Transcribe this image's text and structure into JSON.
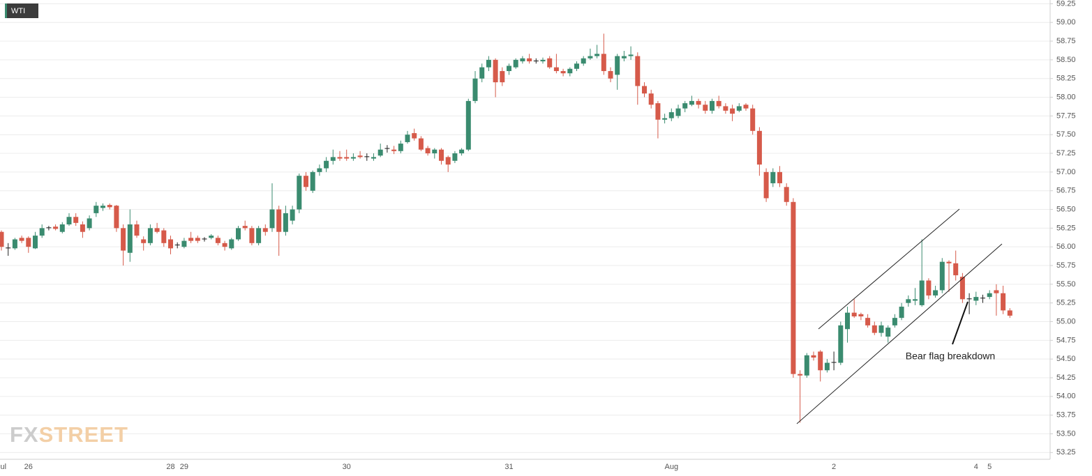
{
  "chart_data": {
    "type": "candlestick",
    "title": "WTI",
    "watermark": [
      "FX",
      "STREET"
    ],
    "annotations": [
      {
        "text": "Bear flag breakdown"
      }
    ],
    "up_color": "#3a8b6f",
    "down_color": "#d65a4a",
    "doji_color": "#222222",
    "grid": true,
    "ylim": [
      53.16,
      59.3
    ],
    "yticks": [
      53.25,
      {
        "value": 53.5,
        "label": "53.50"
      },
      53.75,
      {
        "value": 54,
        "label": "54.00"
      },
      54.25,
      {
        "value": 54.5,
        "label": "54.50"
      },
      54.75,
      {
        "value": 55,
        "label": "55.00"
      },
      55.25,
      {
        "value": 55.5,
        "label": "55.50"
      },
      55.75,
      {
        "value": 56,
        "label": "56.00"
      },
      56.25,
      {
        "value": 56.5,
        "label": "56.50"
      },
      56.75,
      {
        "value": 57,
        "label": "57.00"
      },
      57.25,
      {
        "value": 57.5,
        "label": "57.50"
      },
      57.75,
      {
        "value": 58,
        "label": "58.00"
      },
      58.25,
      {
        "value": 58.5,
        "label": "58.50"
      },
      58.75,
      {
        "value": 59,
        "label": "59.00"
      },
      59.25
    ],
    "categories": [
      "Jul",
      null,
      null,
      null,
      "26",
      null,
      null,
      null,
      null,
      null,
      null,
      null,
      null,
      null,
      null,
      null,
      null,
      null,
      null,
      null,
      null,
      null,
      null,
      null,
      null,
      "28",
      null,
      "29",
      null,
      null,
      null,
      null,
      null,
      null,
      null,
      null,
      null,
      null,
      null,
      null,
      null,
      null,
      null,
      null,
      null,
      null,
      null,
      null,
      null,
      null,
      null,
      "30",
      null,
      null,
      null,
      null,
      null,
      null,
      null,
      null,
      null,
      null,
      null,
      null,
      null,
      null,
      null,
      null,
      null,
      null,
      null,
      null,
      null,
      null,
      null,
      "31",
      null,
      null,
      null,
      null,
      null,
      null,
      null,
      null,
      null,
      null,
      null,
      null,
      null,
      null,
      null,
      null,
      null,
      null,
      null,
      null,
      null,
      null,
      null,
      "Aug",
      null,
      null,
      null,
      null,
      null,
      null,
      null,
      null,
      null,
      null,
      null,
      null,
      null,
      null,
      null,
      null,
      null,
      null,
      null,
      null,
      null,
      null,
      null,
      "2",
      null,
      null,
      null,
      null,
      null,
      null,
      null,
      null,
      null,
      null,
      null,
      null,
      null,
      null,
      null,
      null,
      null,
      null,
      null,
      null,
      "4",
      null,
      "5",
      null,
      null,
      null
    ],
    "open": [
      56.2,
      55.98,
      55.98,
      56.12,
      56.12,
      55.98,
      56.15,
      56.25,
      56.27,
      56.2,
      56.3,
      56.4,
      56.3,
      56.25,
      56.45,
      56.52,
      56.56,
      56.55,
      56.25,
      55.92,
      56.3,
      56.1,
      56.05,
      56.25,
      56.22,
      56.1,
      56.02,
      56.0,
      56.12,
      56.12,
      56.1,
      56.12,
      56.12,
      56.05,
      55.98,
      56.1,
      56.28,
      56.25,
      56.05,
      56.25,
      56.25,
      56.5,
      56.2,
      56.35,
      56.5,
      56.95,
      56.75,
      57.0,
      57.05,
      57.15,
      57.2,
      57.2,
      57.18,
      57.22,
      57.2,
      57.18,
      57.22,
      57.32,
      57.3,
      57.28,
      57.4,
      57.52,
      57.45,
      57.32,
      57.25,
      57.3,
      57.2,
      57.15,
      57.25,
      57.3,
      57.95,
      58.25,
      58.4,
      58.5,
      58.35,
      58.35,
      58.4,
      58.48,
      58.52,
      58.48,
      58.48,
      58.52,
      58.4,
      58.35,
      58.32,
      58.38,
      58.45,
      58.52,
      58.55,
      58.58,
      58.35,
      58.3,
      58.52,
      58.55,
      58.55,
      58.15,
      58.05,
      57.92,
      57.7,
      57.72,
      57.75,
      57.85,
      57.9,
      57.95,
      57.9,
      57.82,
      57.95,
      57.88,
      57.85,
      57.82,
      57.9,
      57.85,
      57.55,
      57.0,
      56.85,
      57.0,
      56.8,
      56.6,
      54.3,
      54.28,
      54.55,
      54.6,
      54.35,
      54.45,
      54.45,
      54.9,
      55.12,
      55.1,
      55.05,
      54.95,
      54.85,
      54.8,
      54.95,
      55.05,
      55.25,
      55.28,
      55.22,
      55.55,
      55.35,
      55.42,
      55.8,
      55.78,
      55.6,
      55.3,
      55.28,
      55.32,
      55.33,
      55.42,
      55.38,
      55.15
    ],
    "high": [
      56.22,
      56.05,
      56.12,
      56.15,
      56.14,
      56.2,
      56.3,
      56.28,
      56.3,
      56.33,
      56.45,
      56.45,
      56.34,
      56.42,
      56.6,
      56.58,
      56.58,
      56.56,
      56.3,
      56.5,
      56.35,
      56.14,
      56.3,
      56.32,
      56.25,
      56.15,
      56.06,
      56.12,
      56.2,
      56.15,
      56.13,
      56.17,
      56.15,
      56.08,
      56.12,
      56.28,
      56.35,
      56.28,
      56.28,
      56.3,
      56.85,
      56.55,
      56.55,
      56.55,
      56.98,
      57.0,
      57.02,
      57.1,
      57.2,
      57.3,
      57.28,
      57.3,
      57.25,
      57.28,
      57.25,
      57.25,
      57.38,
      57.36,
      57.35,
      57.42,
      57.55,
      57.58,
      57.48,
      57.35,
      57.32,
      57.32,
      57.22,
      57.28,
      57.32,
      57.98,
      58.35,
      58.45,
      58.55,
      58.52,
      58.4,
      58.45,
      58.52,
      58.55,
      58.58,
      58.52,
      58.53,
      58.55,
      58.58,
      58.38,
      58.4,
      58.48,
      58.55,
      58.65,
      58.7,
      58.85,
      58.4,
      58.58,
      58.62,
      58.68,
      58.6,
      58.2,
      58.1,
      57.95,
      57.78,
      57.85,
      57.9,
      57.95,
      58.02,
      57.98,
      57.95,
      57.98,
      58.02,
      57.92,
      57.9,
      57.92,
      57.92,
      57.9,
      57.6,
      57.05,
      57.05,
      57.08,
      56.85,
      56.65,
      54.35,
      54.58,
      54.6,
      54.62,
      54.5,
      54.6,
      55.0,
      55.2,
      55.3,
      55.12,
      55.1,
      55.0,
      55.0,
      54.95,
      55.1,
      55.25,
      55.35,
      55.45,
      56.1,
      55.58,
      55.48,
      55.85,
      55.82,
      55.95,
      55.65,
      55.38,
      55.4,
      55.36,
      55.42,
      55.5,
      55.48,
      55.18
    ],
    "low": [
      55.95,
      55.88,
      55.96,
      56.05,
      55.92,
      55.97,
      56.12,
      56.22,
      56.22,
      56.18,
      56.28,
      56.28,
      56.12,
      56.22,
      56.4,
      56.48,
      56.5,
      56.2,
      55.75,
      55.8,
      56.12,
      55.95,
      56.02,
      56.18,
      56.0,
      55.9,
      55.98,
      55.98,
      56.05,
      56.05,
      56.07,
      56.1,
      56.02,
      55.95,
      55.96,
      56.08,
      56.22,
      56.02,
      56.02,
      56.15,
      56.2,
      55.88,
      56.15,
      56.3,
      56.45,
      56.75,
      56.72,
      56.95,
      57.0,
      57.1,
      57.15,
      57.15,
      57.15,
      57.18,
      57.15,
      57.15,
      57.2,
      57.26,
      57.24,
      57.25,
      57.38,
      57.42,
      57.28,
      57.22,
      57.18,
      57.1,
      57.0,
      57.12,
      57.22,
      57.28,
      57.92,
      58.2,
      58.35,
      58.0,
      58.15,
      58.3,
      58.38,
      58.45,
      58.45,
      58.45,
      58.45,
      58.38,
      58.32,
      58.28,
      58.28,
      58.35,
      58.42,
      58.5,
      58.52,
      58.3,
      58.2,
      58.1,
      58.48,
      58.5,
      57.9,
      58.0,
      57.85,
      57.45,
      57.65,
      57.68,
      57.72,
      57.8,
      57.88,
      57.85,
      57.78,
      57.78,
      57.85,
      57.78,
      57.68,
      57.8,
      57.82,
      57.5,
      56.95,
      56.6,
      56.8,
      56.8,
      56.55,
      54.25,
      53.65,
      54.25,
      54.48,
      54.2,
      54.32,
      54.35,
      54.42,
      54.72,
      55.05,
      55.02,
      54.92,
      54.82,
      54.8,
      54.72,
      54.92,
      55.02,
      55.2,
      55.22,
      55.2,
      55.3,
      55.32,
      55.38,
      55.4,
      55.55,
      55.25,
      55.1,
      55.22,
      55.25,
      55.3,
      55.08,
      55.1,
      55.05
    ],
    "close": [
      56.0,
      55.99,
      56.1,
      56.08,
      56.0,
      56.15,
      56.25,
      56.26,
      56.24,
      56.3,
      56.4,
      56.32,
      56.2,
      56.38,
      56.55,
      56.55,
      56.53,
      56.25,
      55.95,
      56.3,
      56.15,
      56.05,
      56.25,
      56.2,
      56.05,
      55.98,
      56.03,
      56.08,
      56.08,
      56.08,
      56.11,
      56.15,
      56.05,
      56.0,
      56.1,
      56.25,
      56.25,
      56.05,
      56.25,
      56.2,
      56.5,
      56.2,
      56.45,
      56.5,
      56.95,
      56.8,
      57.0,
      57.05,
      57.15,
      57.2,
      57.18,
      57.18,
      57.2,
      57.2,
      57.21,
      57.2,
      57.3,
      57.31,
      57.28,
      57.38,
      57.5,
      57.45,
      57.3,
      57.25,
      57.3,
      57.15,
      57.1,
      57.25,
      57.3,
      57.95,
      58.25,
      58.4,
      58.5,
      58.2,
      58.2,
      58.42,
      58.5,
      58.52,
      58.48,
      58.49,
      58.5,
      58.4,
      58.35,
      58.32,
      58.38,
      58.45,
      58.52,
      58.55,
      58.58,
      58.35,
      58.25,
      58.55,
      58.55,
      58.57,
      58.15,
      58.05,
      57.9,
      57.7,
      57.72,
      57.8,
      57.85,
      57.92,
      57.95,
      57.9,
      57.82,
      57.95,
      57.88,
      57.82,
      57.78,
      57.88,
      57.85,
      57.55,
      57.1,
      56.65,
      57.0,
      56.85,
      56.6,
      54.3,
      54.28,
      54.55,
      54.52,
      54.35,
      54.45,
      54.46,
      54.95,
      55.12,
      55.07,
      55.07,
      54.95,
      54.85,
      54.95,
      54.92,
      55.05,
      55.2,
      55.3,
      55.3,
      55.55,
      55.35,
      55.42,
      55.8,
      55.78,
      55.62,
      55.3,
      55.31,
      55.33,
      55.31,
      55.38,
      55.38,
      55.15,
      55.08
    ]
  }
}
